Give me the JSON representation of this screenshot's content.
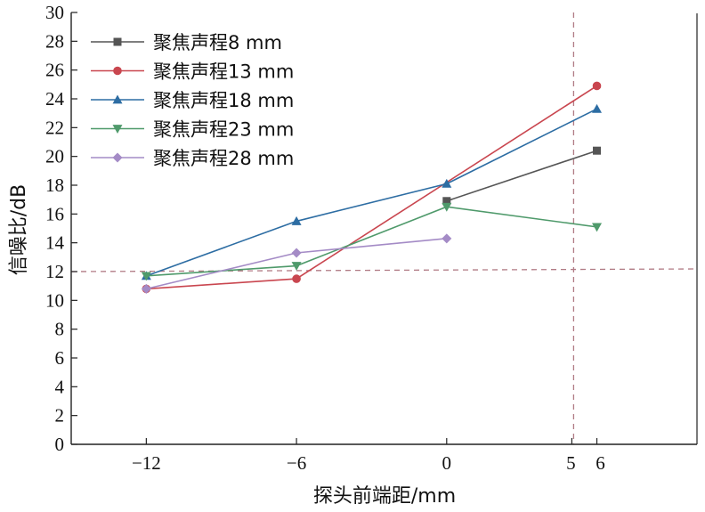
{
  "chart_data": {
    "type": "line",
    "title": "",
    "xlabel": "探头前端距/mm",
    "ylabel": "信噪比/dB",
    "xlim": [
      -15,
      10
    ],
    "ylim": [
      0,
      30
    ],
    "x_ticks": [
      -12,
      -6,
      0,
      5,
      6
    ],
    "x_tick_labels": [
      "−12",
      "−6",
      "0",
      "5",
      "6"
    ],
    "y_ticks": [
      0,
      2,
      4,
      6,
      8,
      10,
      12,
      14,
      16,
      18,
      20,
      22,
      24,
      26,
      28,
      30
    ],
    "y_tick_labels": [
      "0",
      "2",
      "4",
      "6",
      "8",
      "10",
      "12",
      "14",
      "16",
      "18",
      "20",
      "22",
      "24",
      "26",
      "28",
      "30"
    ],
    "grid": false,
    "legend_position": "top-left",
    "reference_lines": [
      {
        "orientation": "horizontal",
        "value": 12,
        "color": "#b07a84",
        "style": "dashed"
      },
      {
        "orientation": "vertical",
        "value": 5,
        "color": "#b07a84",
        "style": "dashed"
      }
    ],
    "series": [
      {
        "name": "聚焦声程8 mm",
        "color": "#555555",
        "marker": "square",
        "x": [
          0,
          6
        ],
        "values": [
          16.9,
          20.4
        ]
      },
      {
        "name": "聚焦声程13 mm",
        "color": "#c9464f",
        "marker": "circle",
        "x": [
          -12,
          -6,
          6
        ],
        "values": [
          10.8,
          11.5,
          24.9
        ]
      },
      {
        "name": "聚焦声程18 mm",
        "color": "#2d6da3",
        "marker": "triangle-up",
        "x": [
          -12,
          -6,
          0,
          6
        ],
        "values": [
          11.7,
          15.5,
          18.1,
          23.3
        ]
      },
      {
        "name": "聚焦声程23 mm",
        "color": "#4f9a6b",
        "marker": "triangle-down",
        "x": [
          -12,
          -6,
          0,
          6
        ],
        "values": [
          11.7,
          12.4,
          16.5,
          15.1
        ]
      },
      {
        "name": "聚焦声程28 mm",
        "color": "#a48bc6",
        "marker": "diamond",
        "x": [
          -12,
          -6,
          0
        ],
        "values": [
          10.8,
          13.3,
          14.3
        ]
      }
    ]
  }
}
